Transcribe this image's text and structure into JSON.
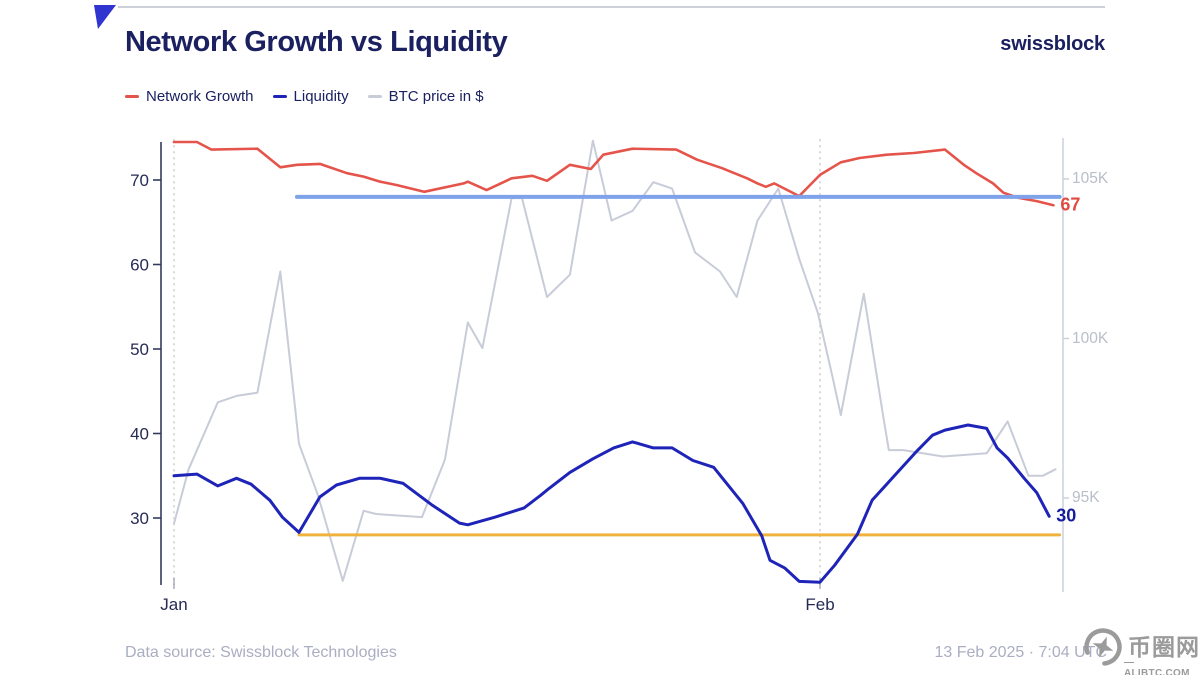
{
  "header": {
    "title": "Network Growth vs Liquidity",
    "brand": "swissblock"
  },
  "legend": {
    "items": [
      {
        "label": "Network Growth",
        "color": "#e5544b"
      },
      {
        "label": "Liquidity",
        "color": "#1f24b8"
      },
      {
        "label": "BTC price in $",
        "color": "#c8ccd9"
      }
    ]
  },
  "footer": {
    "source": "Data source: Swissblock Technologies",
    "timestamp": "13 Feb 2025 · 7:04 UTC"
  },
  "watermark": {
    "site_name": "币圈网",
    "site_url": "—ALIBTC.COM—"
  },
  "chart_data": {
    "type": "line",
    "title": "Network Growth vs Liquidity",
    "x_axis": {
      "tick_labels": [
        "Jan",
        "Feb"
      ],
      "tick_days": [
        0,
        31
      ],
      "note": "days since 1 Jan 2025"
    },
    "left_axis": {
      "ticks": [
        70,
        60,
        50,
        40,
        30
      ],
      "range": [
        22,
        74.6
      ],
      "color": "#343a5e",
      "label_color": "#262b55"
    },
    "right_axis": {
      "tick_labels": [
        "105K",
        "100K",
        "95K"
      ],
      "tick_values": [
        105,
        100,
        95
      ],
      "range_k": [
        92,
        106.5
      ],
      "color": "#ccd0db",
      "label_color": "#b9bec9"
    },
    "grid": {
      "style": "dotted-vertical",
      "color": "#d8d8d0"
    },
    "series": [
      {
        "name": "Network Growth",
        "axis": "left",
        "color": "#e5544b",
        "width": 2.6,
        "end_label": {
          "text": "67",
          "color": "#e04a41"
        },
        "points": [
          [
            0,
            74.5
          ],
          [
            1.1,
            74.5
          ],
          [
            1.8,
            73.6
          ],
          [
            4,
            73.7
          ],
          [
            5.1,
            71.5
          ],
          [
            5.9,
            71.8
          ],
          [
            7,
            71.9
          ],
          [
            8.3,
            70.8
          ],
          [
            9.1,
            70.4
          ],
          [
            9.9,
            69.8
          ],
          [
            10.7,
            69.4
          ],
          [
            12,
            68.6
          ],
          [
            13.9,
            69.6
          ],
          [
            14.1,
            69.8
          ],
          [
            15,
            68.8
          ],
          [
            16.2,
            70.2
          ],
          [
            17.2,
            70.5
          ],
          [
            17.9,
            69.9
          ],
          [
            19,
            71.8
          ],
          [
            20,
            71.3
          ],
          [
            20.6,
            73
          ],
          [
            22,
            73.7
          ],
          [
            24.1,
            73.6
          ],
          [
            25.1,
            72.4
          ],
          [
            26.3,
            71.4
          ],
          [
            27.5,
            70.2
          ],
          [
            28,
            69.6
          ],
          [
            28.4,
            69.2
          ],
          [
            28.8,
            69.6
          ],
          [
            30,
            68.1
          ],
          [
            31,
            70.6
          ],
          [
            32,
            72.1
          ],
          [
            32.9,
            72.6
          ],
          [
            34.2,
            73
          ],
          [
            35.5,
            73.2
          ],
          [
            37,
            73.6
          ],
          [
            37.9,
            71.8
          ],
          [
            38.5,
            70.8
          ],
          [
            39.3,
            69.6
          ],
          [
            39.8,
            68.5
          ],
          [
            40.5,
            67.9
          ],
          [
            41.4,
            67.5
          ],
          [
            42.2,
            67
          ]
        ]
      },
      {
        "name": "Liquidity",
        "axis": "left",
        "color": "#1f24b8",
        "width": 3,
        "end_label": {
          "text": "30",
          "color": "#151c9e"
        },
        "points": [
          [
            0,
            35
          ],
          [
            1.1,
            35.2
          ],
          [
            2.1,
            33.8
          ],
          [
            3,
            34.7
          ],
          [
            3.7,
            34
          ],
          [
            4.6,
            32.1
          ],
          [
            5.2,
            30.1
          ],
          [
            6,
            28.3
          ],
          [
            7,
            32.5
          ],
          [
            7.8,
            33.9
          ],
          [
            8.9,
            34.7
          ],
          [
            9.9,
            34.7
          ],
          [
            11,
            34.1
          ],
          [
            12.4,
            31.5
          ],
          [
            13.7,
            29.4
          ],
          [
            14.1,
            29.2
          ],
          [
            15.4,
            30.1
          ],
          [
            16.8,
            31.2
          ],
          [
            17.6,
            32.7
          ],
          [
            18,
            33.5
          ],
          [
            19,
            35.4
          ],
          [
            20.1,
            37
          ],
          [
            21.1,
            38.3
          ],
          [
            22,
            39
          ],
          [
            23,
            38.3
          ],
          [
            23.9,
            38.3
          ],
          [
            24.9,
            36.8
          ],
          [
            25.9,
            36
          ],
          [
            27.3,
            31.7
          ],
          [
            28.2,
            27.9
          ],
          [
            28.6,
            25
          ],
          [
            29.3,
            24.1
          ],
          [
            30,
            22.5
          ],
          [
            31,
            22.4
          ],
          [
            31.7,
            24.4
          ],
          [
            32.8,
            28.1
          ],
          [
            33.5,
            32.1
          ],
          [
            34.5,
            34.8
          ],
          [
            35.6,
            37.8
          ],
          [
            36.4,
            39.8
          ],
          [
            37,
            40.4
          ],
          [
            38.1,
            41
          ],
          [
            39,
            40.6
          ],
          [
            39.5,
            38.3
          ],
          [
            40,
            37.1
          ],
          [
            40.8,
            34.7
          ],
          [
            41.4,
            33
          ],
          [
            42,
            30.2
          ]
        ]
      },
      {
        "name": "BTC price in $",
        "axis": "right",
        "color": "#c8ccd9",
        "width": 2,
        "points": [
          [
            0,
            94.2
          ],
          [
            0.7,
            95.9
          ],
          [
            2.1,
            98
          ],
          [
            3,
            98.2
          ],
          [
            4,
            98.3
          ],
          [
            5.1,
            102.1
          ],
          [
            6,
            96.7
          ],
          [
            6.9,
            95.1
          ],
          [
            8.1,
            92.4
          ],
          [
            9.1,
            94.6
          ],
          [
            9.7,
            94.5
          ],
          [
            11.9,
            94.4
          ],
          [
            13,
            96.2
          ],
          [
            14.1,
            100.5
          ],
          [
            14.8,
            99.7
          ],
          [
            16.2,
            104.4
          ],
          [
            16.7,
            104.4
          ],
          [
            17.9,
            101.3
          ],
          [
            19,
            102
          ],
          [
            20.1,
            106.2
          ],
          [
            21,
            103.7
          ],
          [
            22,
            104
          ],
          [
            23,
            104.9
          ],
          [
            23.9,
            104.7
          ],
          [
            25,
            102.7
          ],
          [
            26.2,
            102.1
          ],
          [
            27,
            101.3
          ],
          [
            28,
            103.7
          ],
          [
            29,
            104.7
          ],
          [
            30,
            102.5
          ],
          [
            30.9,
            100.8
          ],
          [
            31.6,
            98.8
          ],
          [
            32,
            97.6
          ],
          [
            33.1,
            101.4
          ],
          [
            34,
            97.7
          ],
          [
            34.3,
            96.5
          ],
          [
            35,
            96.5
          ],
          [
            36.9,
            96.3
          ],
          [
            39,
            96.4
          ],
          [
            40,
            97.4
          ],
          [
            41,
            95.7
          ],
          [
            41.7,
            95.7
          ],
          [
            42.3,
            95.9
          ]
        ]
      }
    ],
    "ref_lines": [
      {
        "name": "upper-threshold",
        "axis": "left",
        "value": 68,
        "color": "#7fa3ea",
        "width": 4,
        "start_day": 5.9,
        "end_day": 42.5
      },
      {
        "name": "lower-threshold",
        "axis": "left",
        "value": 28,
        "color": "#efb33d",
        "width": 3,
        "start_day": 6,
        "end_day": 42.5
      }
    ]
  }
}
